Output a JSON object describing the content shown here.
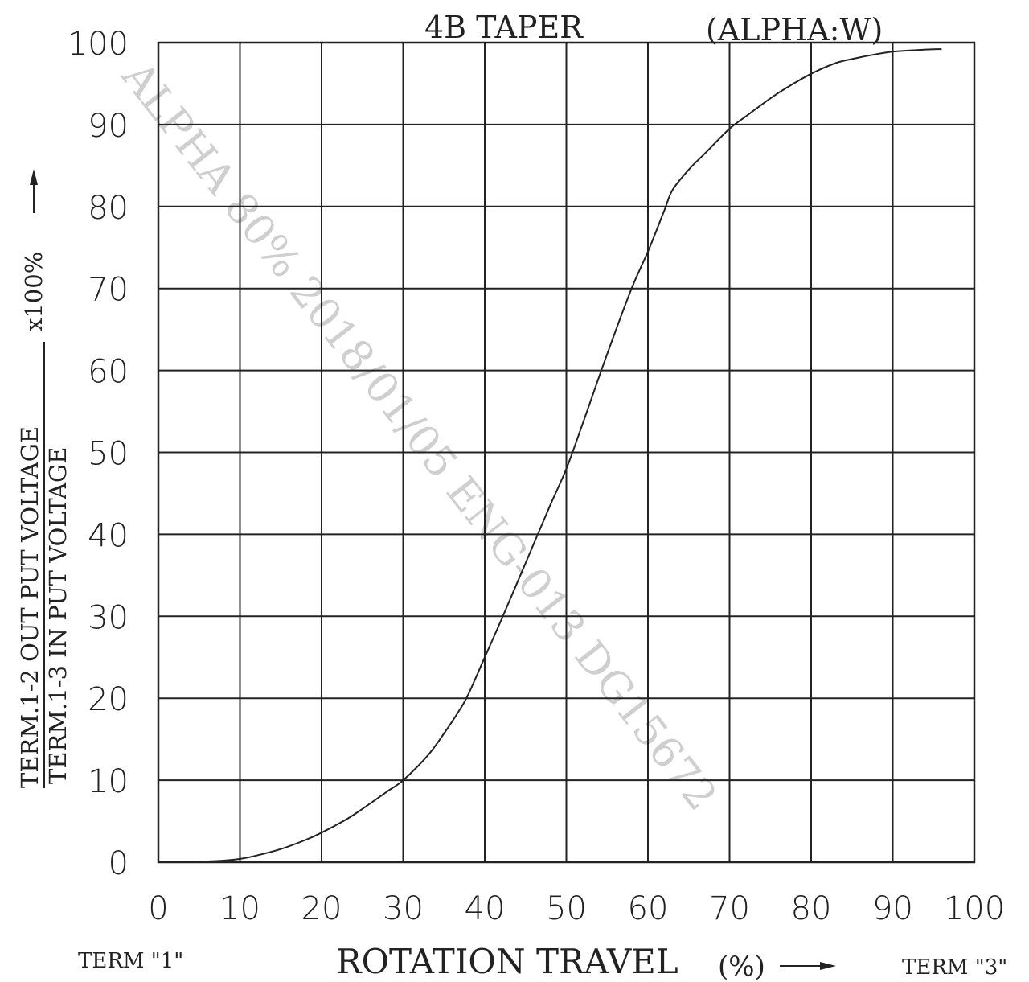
{
  "chart_data": {
    "type": "line",
    "title": "4B TAPER",
    "subtitle": "(ALPHA:W)",
    "xlabel": "ROTATION TRAVEL",
    "xlabel_unit": "(%)",
    "ylabel_numerator": "TERM.1-2 OUT PUT VOLTAGE",
    "ylabel_denominator": "TERM.1-3 IN PUT VOLTAGE",
    "ylabel_factor": "x100%",
    "term_left": "TERM \"1\"",
    "term_right": "TERM \"3\"",
    "watermark": "ALPHA 80% 2018/01/05 ENG-013 DG15672",
    "xlim": [
      0,
      100
    ],
    "ylim": [
      0,
      100
    ],
    "grid": true,
    "x_ticks": [
      "0",
      "10",
      "20",
      "30",
      "40",
      "50",
      "60",
      "70",
      "80",
      "90",
      "100"
    ],
    "y_ticks": [
      "0",
      "10",
      "20",
      "30",
      "40",
      "50",
      "60",
      "70",
      "80",
      "90",
      "100"
    ],
    "series": [
      {
        "x": [
          4,
          6,
          8,
          10,
          12,
          15,
          18,
          20,
          23,
          25,
          28,
          30,
          33,
          35,
          37,
          38,
          40,
          42,
          45,
          48,
          50,
          52,
          55,
          58,
          60,
          62,
          63,
          65,
          67,
          70,
          72,
          75,
          77,
          80,
          83,
          85,
          88,
          90,
          93,
          95,
          96
        ],
        "y": [
          0,
          0.1,
          0.2,
          0.4,
          0.8,
          1.6,
          2.7,
          3.6,
          5.2,
          6.5,
          8.6,
          10,
          13,
          15.7,
          18.7,
          20.5,
          25,
          29.5,
          36.5,
          43.5,
          48,
          53.5,
          62,
          70,
          74.5,
          79.5,
          82,
          84.5,
          86.5,
          89.5,
          91,
          93.2,
          94.5,
          96.2,
          97.5,
          98,
          98.6,
          98.9,
          99.1,
          99.2,
          99.2
        ]
      }
    ]
  }
}
